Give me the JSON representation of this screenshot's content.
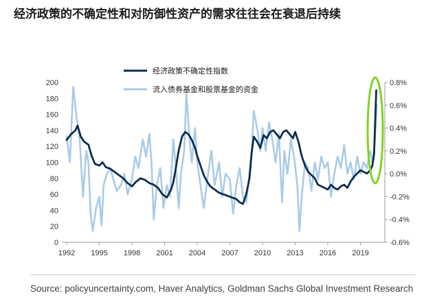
{
  "title": "经济政策的不确定性和对防御性资产的需求往往会在衰退后持续",
  "source": "Source: policyuncertainty.com, Haver Analytics, Goldman Sachs Global Investment Research",
  "chart_data": {
    "type": "line",
    "legend_position": "top-center",
    "grid": false,
    "x_ticks": [
      "1992",
      "1995",
      "1998",
      "2001",
      "2004",
      "2007",
      "2010",
      "2013",
      "2016",
      "2019"
    ],
    "xlim": [
      1992,
      2020.8
    ],
    "y_left": {
      "ylim": [
        0,
        200
      ],
      "ticks": [
        "0",
        "20",
        "40",
        "60",
        "80",
        "100",
        "120",
        "140",
        "160",
        "180",
        "200"
      ]
    },
    "y_right": {
      "ylim": [
        -0.6,
        0.8
      ],
      "ticks": [
        "-0.6%",
        "-0.4%",
        "-0.2%",
        "0.0%",
        "0.2%",
        "0.4%",
        "0.6%",
        "0.8%"
      ]
    },
    "annotation": {
      "type": "ellipse",
      "color": "#7ed321"
    },
    "series": [
      {
        "name": "经济政策不确定性指数",
        "axis": "left",
        "color": "#0d2d4f",
        "x": [
          1992.0,
          1992.4,
          1992.8,
          1993.0,
          1993.3,
          1993.6,
          1994.0,
          1994.3,
          1994.6,
          1995.0,
          1995.3,
          1995.6,
          1996.0,
          1996.4,
          1996.8,
          1997.2,
          1997.6,
          1998.0,
          1998.4,
          1998.8,
          1999.2,
          1999.6,
          2000.0,
          2000.4,
          2000.8,
          2001.2,
          2001.6,
          2001.8,
          2002.0,
          2002.3,
          2002.6,
          2002.9,
          2003.2,
          2003.5,
          2003.8,
          2004.0,
          2004.3,
          2004.6,
          2004.9,
          2005.2,
          2005.6,
          2006.0,
          2006.4,
          2006.8,
          2007.2,
          2007.6,
          2007.9,
          2008.2,
          2008.5,
          2008.8,
          2009.0,
          2009.2,
          2009.5,
          2009.8,
          2010.1,
          2010.4,
          2010.7,
          2011.0,
          2011.3,
          2011.6,
          2011.9,
          2012.2,
          2012.5,
          2012.8,
          2013.0,
          2013.3,
          2013.6,
          2013.9,
          2014.2,
          2014.5,
          2014.8,
          2015.1,
          2015.4,
          2015.7,
          2016.0,
          2016.3,
          2016.6,
          2016.9,
          2017.2,
          2017.5,
          2017.8,
          2018.1,
          2018.4,
          2018.7,
          2019.0,
          2019.3,
          2019.6,
          2019.9,
          2020.1,
          2020.25,
          2020.35,
          2020.45
        ],
        "values": [
          128,
          135,
          140,
          146,
          132,
          126,
          122,
          108,
          98,
          96,
          100,
          94,
          92,
          88,
          84,
          80,
          74,
          70,
          76,
          80,
          78,
          74,
          72,
          68,
          60,
          56,
          66,
          75,
          90,
          115,
          132,
          138,
          135,
          128,
          118,
          108,
          96,
          84,
          76,
          70,
          66,
          62,
          60,
          58,
          56,
          54,
          50,
          48,
          60,
          80,
          112,
          132,
          126,
          118,
          134,
          130,
          138,
          140,
          135,
          130,
          138,
          140,
          135,
          130,
          138,
          126,
          108,
          96,
          88,
          84,
          80,
          72,
          70,
          68,
          66,
          72,
          68,
          66,
          70,
          72,
          68,
          76,
          82,
          86,
          90,
          88,
          86,
          90,
          96,
          110,
          150,
          190
        ]
      },
      {
        "name": "流入债券基金和股票基金的资金",
        "axis": "right",
        "color": "#a9cbe8",
        "x": [
          1992.0,
          1992.3,
          1992.6,
          1992.9,
          1993.2,
          1993.5,
          1993.8,
          1994.0,
          1994.2,
          1994.4,
          1994.7,
          1995.0,
          1995.2,
          1995.4,
          1995.7,
          1996.0,
          1996.3,
          1996.6,
          1997.0,
          1997.3,
          1997.6,
          1998.0,
          1998.3,
          1998.6,
          1999.0,
          1999.3,
          1999.6,
          1999.8,
          2000.0,
          2000.3,
          2000.6,
          2000.9,
          2001.2,
          2001.5,
          2001.8,
          2002.0,
          2002.3,
          2002.5,
          2002.8,
          2003.0,
          2003.3,
          2003.5,
          2003.8,
          2004.0,
          2004.3,
          2004.6,
          2005.0,
          2005.3,
          2005.6,
          2006.0,
          2006.3,
          2006.6,
          2007.0,
          2007.3,
          2007.6,
          2007.9,
          2008.2,
          2008.5,
          2008.8,
          2009.0,
          2009.2,
          2009.5,
          2009.8,
          2010.0,
          2010.3,
          2010.6,
          2010.9,
          2011.2,
          2011.5,
          2011.8,
          2012.0,
          2012.3,
          2012.6,
          2012.9,
          2013.2,
          2013.4,
          2013.6,
          2013.9,
          2014.2,
          2014.5,
          2014.8,
          2015.1,
          2015.4,
          2015.7,
          2016.0,
          2016.3,
          2016.6,
          2016.9,
          2017.2,
          2017.5,
          2017.8,
          2018.1,
          2018.4,
          2018.7,
          2019.0,
          2019.3,
          2019.6,
          2019.9,
          2020.1,
          2020.3,
          2020.5
        ],
        "values": [
          0.33,
          0.1,
          0.76,
          0.5,
          0.3,
          -0.2,
          0.2,
          0.1,
          -0.35,
          -0.5,
          -0.3,
          -0.2,
          -0.45,
          -0.1,
          0.0,
          0.05,
          -0.05,
          -0.15,
          -0.1,
          0.0,
          -0.18,
          -0.05,
          0.15,
          0.05,
          0.3,
          0.15,
          0.35,
          0.1,
          -0.4,
          -0.1,
          0.05,
          -0.3,
          -0.1,
          -0.2,
          0.3,
          0.1,
          -0.3,
          0.0,
          0.2,
          0.7,
          0.3,
          0.1,
          0.4,
          0.1,
          -0.1,
          -0.3,
          0.0,
          0.2,
          -0.1,
          0.1,
          -0.2,
          0.0,
          -0.05,
          -0.35,
          -0.1,
          0.05,
          -0.2,
          -0.25,
          0.0,
          0.2,
          0.55,
          0.4,
          0.2,
          0.4,
          0.2,
          0.45,
          0.3,
          0.1,
          0.35,
          -0.25,
          0.2,
          0.0,
          0.3,
          0.15,
          -0.1,
          -0.5,
          -0.2,
          0.1,
          0.05,
          -0.15,
          0.1,
          -0.05,
          0.15,
          0.05,
          0.1,
          -0.2,
          0.0,
          0.15,
          0.05,
          0.25,
          0.0,
          0.1,
          -0.05,
          0.15,
          0.0,
          0.1,
          0.05,
          0.2,
          0.1,
          0.25,
          0.6
        ]
      }
    ]
  }
}
